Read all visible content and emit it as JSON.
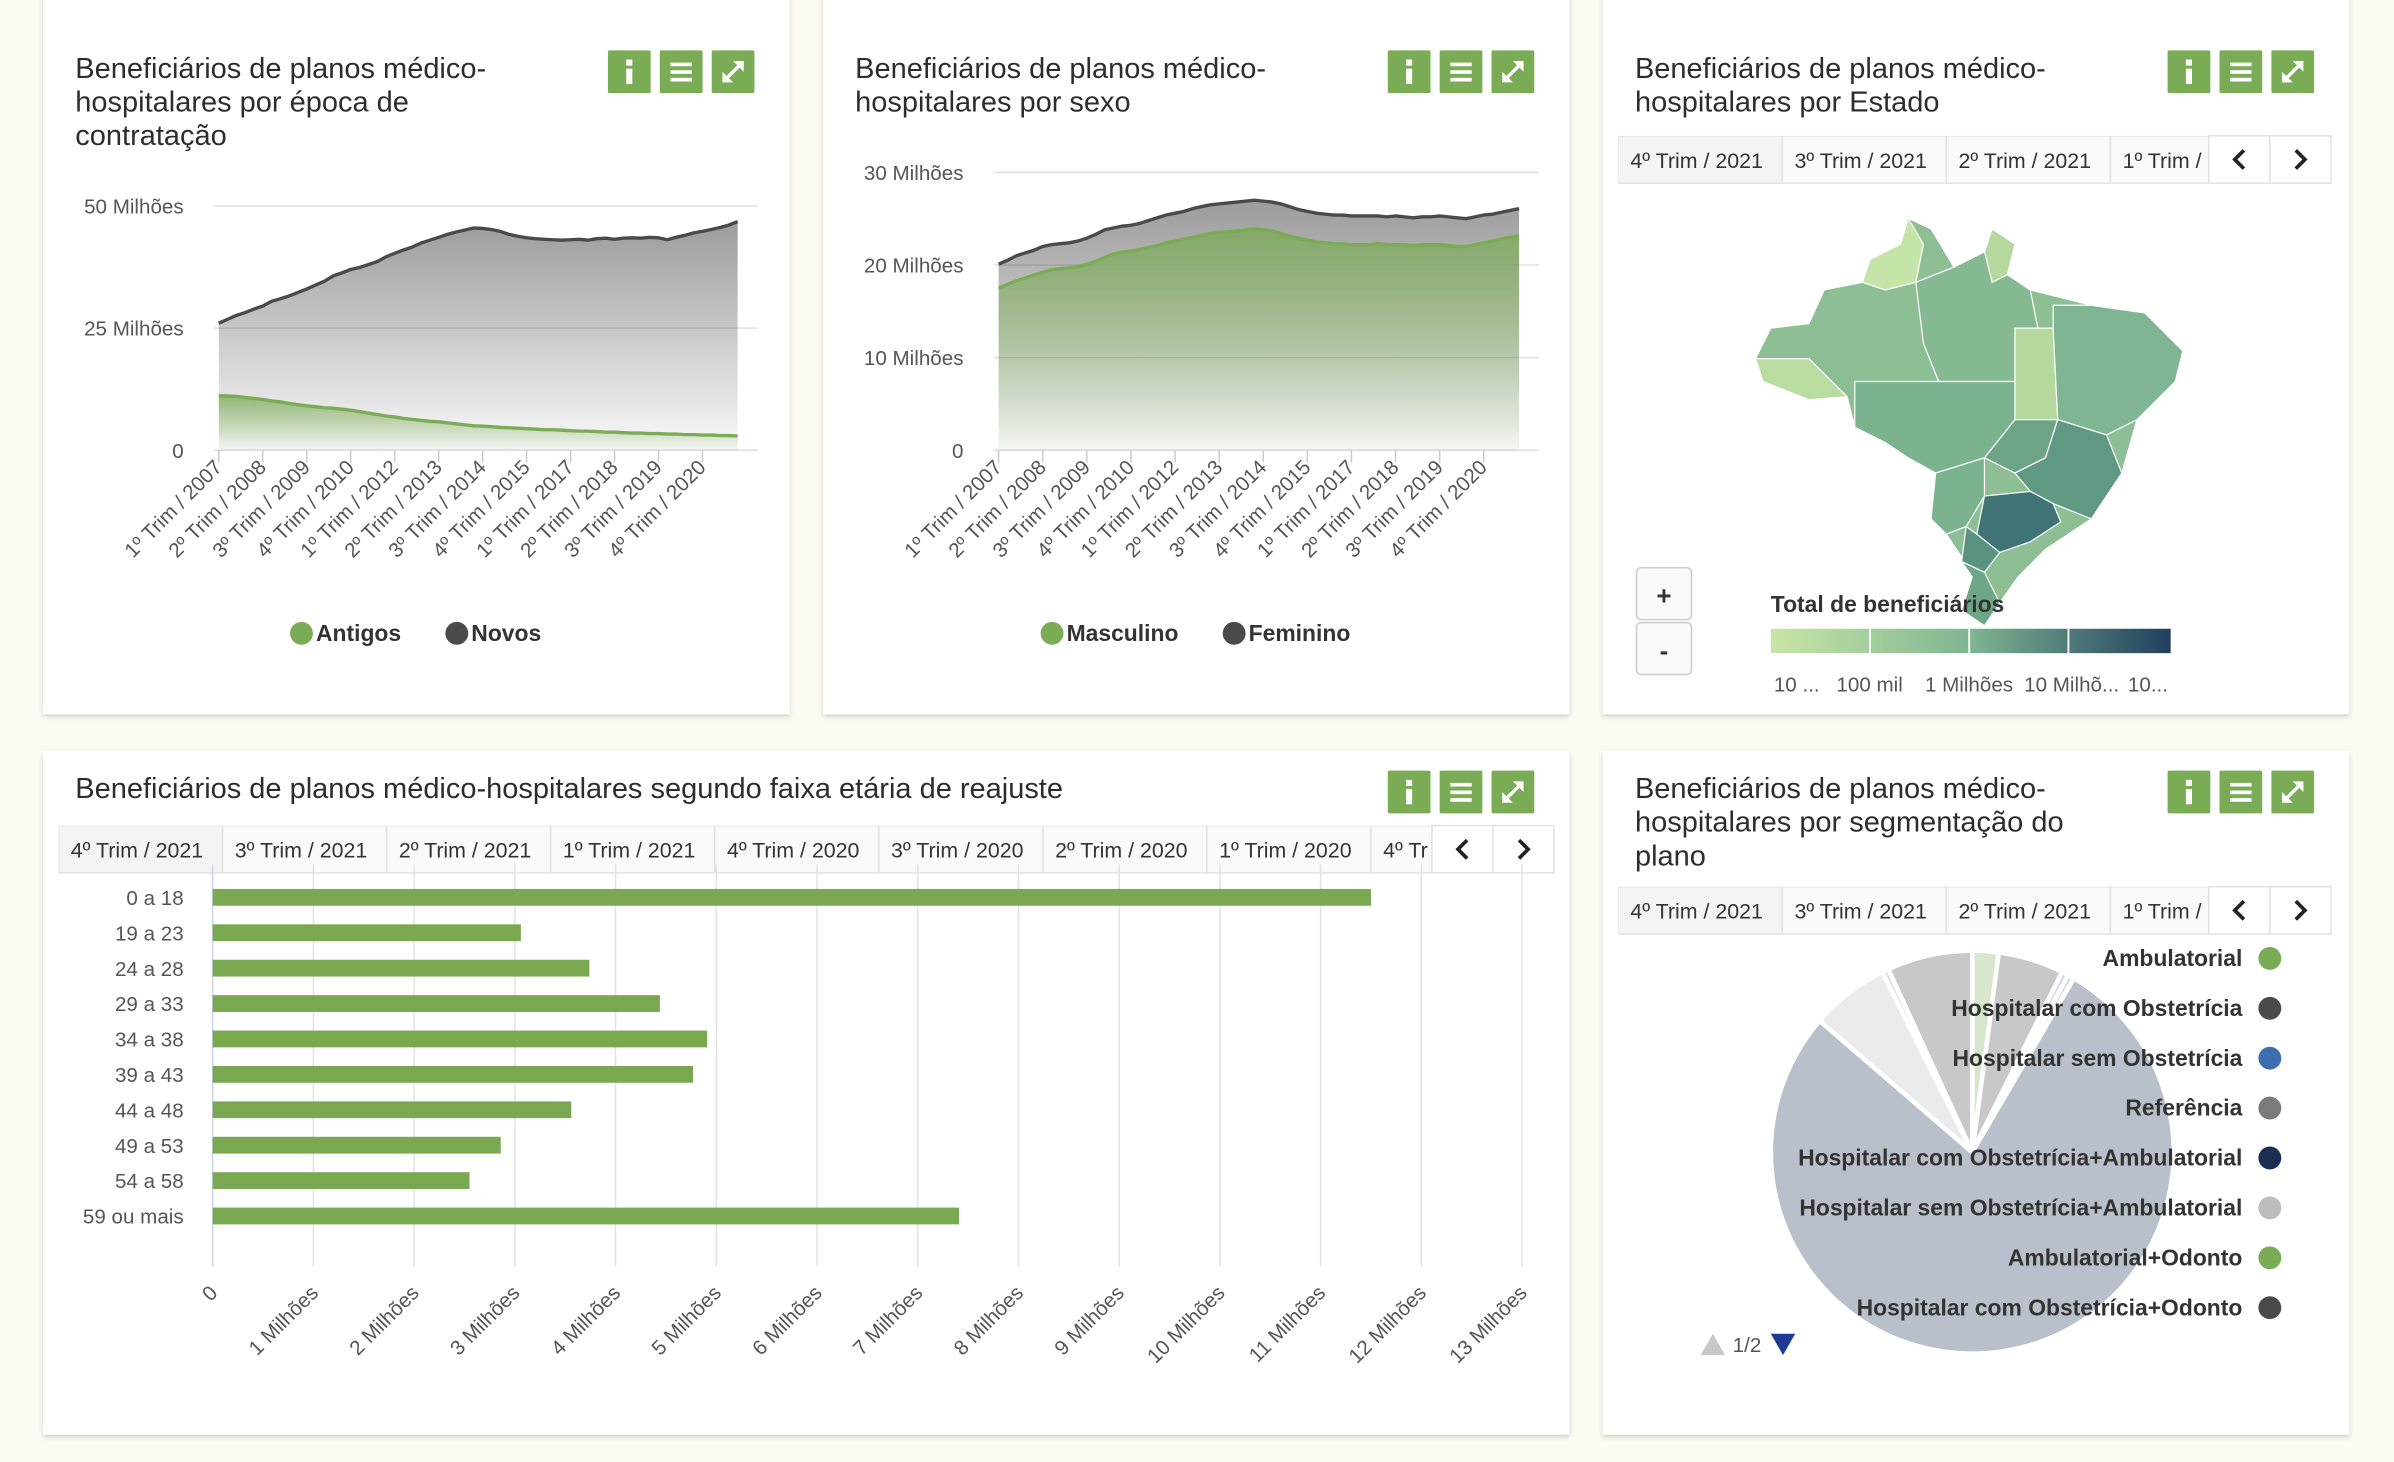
{
  "chart_data": [
    {
      "type": "area",
      "title": "Beneficiários de planos médico-hospitalares por época de contratação",
      "categories": [
        "1º Trim / 2007",
        null,
        null,
        null,
        null,
        "2º Trim / 2008",
        null,
        null,
        null,
        null,
        "3º Trim / 2009",
        null,
        null,
        null,
        null,
        "4º Trim / 2010",
        null,
        null,
        null,
        null,
        "1º Trim / 2012",
        null,
        null,
        null,
        null,
        "2º Trim / 2013",
        null,
        null,
        null,
        null,
        "3º Trim / 2014",
        null,
        null,
        null,
        null,
        "4º Trim / 2015",
        null,
        null,
        null,
        null,
        "1º Trim / 2017",
        null,
        null,
        null,
        null,
        "2º Trim / 2018",
        null,
        null,
        null,
        null,
        "3º Trim / 2019",
        null,
        null,
        null,
        null,
        "4º Trim / 2020",
        null,
        null,
        null,
        null
      ],
      "series": [
        {
          "name": "Antigos",
          "color": "#7aab55",
          "values": [
            11.2,
            11.1,
            11.0,
            10.8,
            10.6,
            10.4,
            10.1,
            9.9,
            9.6,
            9.3,
            9.1,
            8.9,
            8.7,
            8.6,
            8.4,
            8.2,
            7.9,
            7.6,
            7.3,
            7.0,
            6.8,
            6.5,
            6.3,
            6.1,
            5.9,
            5.8,
            5.6,
            5.4,
            5.2,
            5.0,
            4.9,
            4.8,
            4.7,
            4.6,
            4.5,
            4.4,
            4.3,
            4.2,
            4.2,
            4.1,
            4.0,
            3.9,
            3.9,
            3.8,
            3.7,
            3.7,
            3.6,
            3.5,
            3.5,
            3.4,
            3.4,
            3.3,
            3.3,
            3.2,
            3.2,
            3.1,
            3.1,
            3.0,
            3.0,
            2.9
          ]
        },
        {
          "name": "Novos",
          "color": "#4a4a4a",
          "values": [
            26.0,
            26.8,
            27.6,
            28.2,
            28.9,
            29.5,
            30.5,
            31.0,
            31.6,
            32.3,
            33.0,
            33.8,
            34.6,
            35.7,
            36.3,
            37.0,
            37.4,
            38.0,
            38.6,
            39.6,
            40.3,
            41.0,
            41.6,
            42.4,
            43.0,
            43.6,
            44.2,
            44.7,
            45.1,
            45.5,
            45.4,
            45.2,
            44.8,
            44.2,
            43.8,
            43.5,
            43.3,
            43.2,
            43.1,
            43.0,
            43.1,
            43.2,
            43.0,
            43.3,
            43.4,
            43.2,
            43.4,
            43.5,
            43.4,
            43.6,
            43.5,
            43.1,
            43.6,
            44.0,
            44.5,
            44.8,
            45.2,
            45.6,
            46.1,
            46.8
          ]
        }
      ],
      "ylim": [
        0,
        50
      ],
      "yticks": [
        0,
        {
          "value": 25,
          "label": "25 Milhões"
        },
        {
          "value": 50,
          "label": "50 Milhões"
        }
      ],
      "grid": true
    },
    {
      "type": "area",
      "title": "Beneficiários de planos médico-hospitalares por sexo",
      "categories": [
        "1º Trim / 2007",
        null,
        null,
        null,
        null,
        "2º Trim / 2008",
        null,
        null,
        null,
        null,
        "3º Trim / 2009",
        null,
        null,
        null,
        null,
        "4º Trim / 2010",
        null,
        null,
        null,
        null,
        "1º Trim / 2012",
        null,
        null,
        null,
        null,
        "2º Trim / 2013",
        null,
        null,
        null,
        null,
        "3º Trim / 2014",
        null,
        null,
        null,
        null,
        "4º Trim / 2015",
        null,
        null,
        null,
        null,
        "1º Trim / 2017",
        null,
        null,
        null,
        null,
        "2º Trim / 2018",
        null,
        null,
        null,
        null,
        "3º Trim / 2019",
        null,
        null,
        null,
        null,
        "4º Trim / 2020",
        null,
        null,
        null,
        null
      ],
      "series": [
        {
          "name": "Masculino",
          "color": "#7aab55",
          "values": [
            17.5,
            17.9,
            18.3,
            18.6,
            18.9,
            19.2,
            19.5,
            19.6,
            19.7,
            19.8,
            20.1,
            20.4,
            20.8,
            21.2,
            21.4,
            21.5,
            21.7,
            21.9,
            22.1,
            22.4,
            22.6,
            22.8,
            23.0,
            23.2,
            23.4,
            23.5,
            23.6,
            23.7,
            23.8,
            23.9,
            23.8,
            23.7,
            23.4,
            23.1,
            22.9,
            22.7,
            22.5,
            22.4,
            22.3,
            22.3,
            22.2,
            22.2,
            22.2,
            22.3,
            22.2,
            22.2,
            22.2,
            22.1,
            22.2,
            22.2,
            22.2,
            22.1,
            22.0,
            22.0,
            22.2,
            22.4,
            22.6,
            22.8,
            23.0,
            23.2
          ]
        },
        {
          "name": "Feminino",
          "color": "#4a4a4a",
          "values": [
            20.1,
            20.5,
            21.0,
            21.3,
            21.6,
            22.0,
            22.2,
            22.3,
            22.4,
            22.6,
            22.9,
            23.3,
            23.8,
            24.0,
            24.2,
            24.3,
            24.5,
            24.8,
            25.1,
            25.4,
            25.6,
            25.8,
            26.1,
            26.3,
            26.5,
            26.6,
            26.7,
            26.8,
            26.9,
            27.0,
            26.9,
            26.8,
            26.6,
            26.3,
            26.0,
            25.8,
            25.6,
            25.5,
            25.4,
            25.4,
            25.3,
            25.3,
            25.3,
            25.3,
            25.2,
            25.3,
            25.2,
            25.1,
            25.2,
            25.2,
            25.3,
            25.2,
            25.1,
            25.0,
            25.2,
            25.4,
            25.5,
            25.7,
            25.9,
            26.1
          ]
        }
      ],
      "ylim": [
        0,
        30
      ],
      "yticks": [
        0,
        {
          "value": 10,
          "label": "10 Milhões"
        },
        {
          "value": 20,
          "label": "20 Milhões"
        },
        {
          "value": 30,
          "label": "30 Milhões"
        }
      ],
      "grid": true
    },
    {
      "type": "map",
      "title": "Beneficiários de planos médico-hospitalares por Estado",
      "tabs": [
        "4º Trim / 2021",
        "3º Trim / 2021",
        "2º Trim / 2021",
        "1º Trim /"
      ],
      "zoom": [
        "+",
        "-"
      ],
      "legend_title": "Total de beneficiários",
      "legend_labels": [
        "10 ...",
        "100 mil",
        "1 Milhões",
        "10 Milhõ...",
        "10..."
      ]
    },
    {
      "type": "hbar",
      "title": "Beneficiários de planos médico-hospitalares segundo faixa etária de reajuste",
      "tabs": [
        "4º Trim / 2021",
        "3º Trim / 2021",
        "2º Trim / 2021",
        "1º Trim / 2021",
        "4º Trim / 2020",
        "3º Trim / 2020",
        "2º Trim / 2020",
        "1º Trim / 2020",
        "4º Tr"
      ],
      "categories": [
        "0 a 18",
        "19 a 23",
        "24 a 28",
        "29 a 33",
        "34 a 38",
        "39 a 43",
        "44 a 48",
        "49 a 53",
        "54 a 58",
        "59 ou mais"
      ],
      "values": [
        11.5,
        3.06,
        3.74,
        4.44,
        4.91,
        4.77,
        3.56,
        2.86,
        2.55,
        7.41
      ],
      "color": "#79a851",
      "xlim": [
        0,
        13
      ],
      "xticks": [
        0,
        {
          "value": 1,
          "label": "1 Milhões"
        },
        {
          "value": 2,
          "label": "2 Milhões"
        },
        {
          "value": 3,
          "label": "3 Milhões"
        },
        {
          "value": 4,
          "label": "4 Milhões"
        },
        {
          "value": 5,
          "label": "5 Milhões"
        },
        {
          "value": 6,
          "label": "6 Milhões"
        },
        {
          "value": 7,
          "label": "7 Milhões"
        },
        {
          "value": 8,
          "label": "8 Milhões"
        },
        {
          "value": 9,
          "label": "9 Milhões"
        },
        {
          "value": 10,
          "label": "10 Milhões"
        },
        {
          "value": 11,
          "label": "11 Milhões"
        },
        {
          "value": 12,
          "label": "12 Milhões"
        },
        {
          "value": 13,
          "label": "13 Milhões"
        }
      ],
      "grid": true
    },
    {
      "type": "pie",
      "title": "Beneficiários de planos médico-hospitalares por segmentação do plano",
      "tabs": [
        "4º Trim / 2021",
        "3º Trim / 2021",
        "2º Trim / 2021",
        "1º Trim /"
      ],
      "categories": [
        "Ambulatorial",
        "Hospitalar com Obstetrícia",
        "Hospitalar sem Obstetrícia",
        "Referência",
        "Hospitalar com Obstetrícia+Ambulatorial",
        "Hospitalar sem Obstetrícia+Ambulatorial",
        "Ambulatorial+Odonto",
        "Hospitalar com Obstetrícia+Odonto"
      ],
      "values": [
        2,
        5,
        0.5,
        0.5,
        74,
        6,
        0.5,
        6.5
      ],
      "colors": [
        "#7aab55",
        "#4a4a4a",
        "#3d6fb0",
        "#7a7a7a",
        "#1c2f52",
        "#bdbdbd",
        "#7aab55",
        "#4a4a4a"
      ],
      "legend_page": "1/2"
    }
  ]
}
